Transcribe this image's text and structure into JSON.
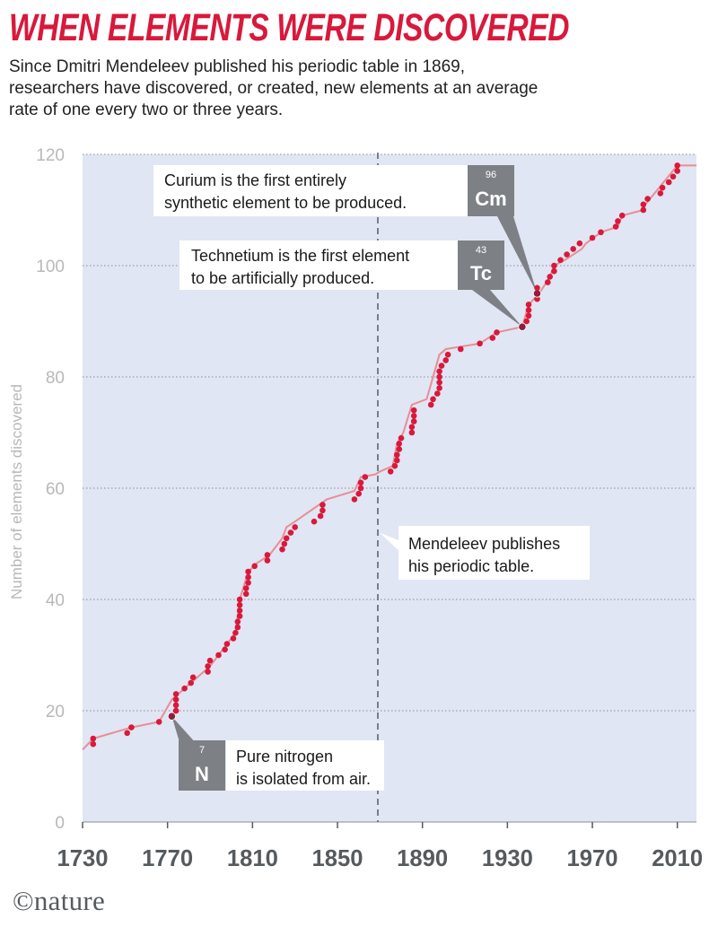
{
  "header": {
    "title": "WHEN ELEMENTS WERE DISCOVERED",
    "subtitle": "Since Dmitri Mendeleev published his periodic table in 1869, researchers have discovered, or created, new elements at an average rate of one every two or three years."
  },
  "brand": {
    "label": "©nature"
  },
  "colors": {
    "background_panel": "#e0e6f3",
    "line": "#e98d94",
    "point": "#d8193c",
    "highlight_point": "#8b1f3c",
    "badge": "#7d8185",
    "title": "#d8193c"
  },
  "chart_data": {
    "type": "line",
    "title": "WHEN ELEMENTS WERE DISCOVERED",
    "xlabel": "",
    "ylabel": "Number of elements discovered",
    "xlim": [
      1730,
      2019
    ],
    "ylim": [
      0,
      120
    ],
    "grid": true,
    "x_tick_labels": [
      "1730",
      "1770",
      "1810",
      "1850",
      "1890",
      "1930",
      "1970",
      "2010"
    ],
    "y_tick_labels": [
      "0",
      "20",
      "40",
      "60",
      "80",
      "100",
      "120"
    ],
    "step_line": [
      [
        1725,
        13
      ],
      [
        1735,
        15
      ],
      [
        1753,
        17
      ],
      [
        1766,
        18
      ],
      [
        1772,
        22
      ],
      [
        1790,
        28
      ],
      [
        1802,
        34
      ],
      [
        1804,
        40
      ],
      [
        1808,
        45
      ],
      [
        1812,
        46.5
      ],
      [
        1818,
        48
      ],
      [
        1824,
        51
      ],
      [
        1826,
        53
      ],
      [
        1830,
        54
      ],
      [
        1845,
        58
      ],
      [
        1858,
        59.5
      ],
      [
        1861,
        62
      ],
      [
        1868,
        62.5
      ],
      [
        1870,
        63
      ],
      [
        1876,
        64
      ],
      [
        1878,
        68
      ],
      [
        1881,
        70
      ],
      [
        1885,
        75
      ],
      [
        1892,
        76
      ],
      [
        1895,
        80
      ],
      [
        1898,
        84
      ],
      [
        1901,
        85
      ],
      [
        1917,
        86
      ],
      [
        1925,
        88
      ],
      [
        1937,
        89
      ],
      [
        1940,
        93
      ],
      [
        1945,
        95
      ],
      [
        1950,
        98
      ],
      [
        1952,
        100
      ],
      [
        1957,
        101
      ],
      [
        1965,
        103
      ],
      [
        1967,
        104
      ],
      [
        1974,
        106
      ],
      [
        1982,
        107
      ],
      [
        1984,
        109
      ],
      [
        1994,
        110
      ],
      [
        1995,
        111
      ],
      [
        2010,
        118
      ],
      [
        2019,
        118
      ]
    ],
    "series": [
      {
        "values": [
          [
            1735,
            14
          ],
          [
            1735,
            15
          ],
          [
            1751,
            16
          ],
          [
            1753,
            17
          ],
          [
            1766,
            18
          ],
          [
            1772,
            19
          ],
          [
            1774,
            20
          ],
          [
            1774,
            21
          ],
          [
            1774,
            22
          ],
          [
            1774,
            23
          ],
          [
            1778,
            24
          ],
          [
            1781,
            25
          ],
          [
            1782,
            26
          ],
          [
            1789,
            27
          ],
          [
            1789,
            28
          ],
          [
            1790,
            29
          ],
          [
            1794,
            30
          ],
          [
            1797,
            31
          ],
          [
            1798,
            32
          ],
          [
            1801,
            33
          ],
          [
            1802,
            34
          ],
          [
            1803,
            35
          ],
          [
            1803,
            36
          ],
          [
            1804,
            37
          ],
          [
            1804,
            38
          ],
          [
            1804,
            39
          ],
          [
            1804,
            40
          ],
          [
            1807,
            41
          ],
          [
            1807,
            42
          ],
          [
            1808,
            43
          ],
          [
            1808,
            44
          ],
          [
            1808,
            45
          ],
          [
            1811,
            46
          ],
          [
            1817,
            47
          ],
          [
            1817,
            48
          ],
          [
            1824,
            49
          ],
          [
            1825,
            50
          ],
          [
            1826,
            51
          ],
          [
            1828,
            52
          ],
          [
            1830,
            53
          ],
          [
            1839,
            54
          ],
          [
            1842,
            55
          ],
          [
            1843,
            56
          ],
          [
            1843,
            57
          ],
          [
            1858,
            58
          ],
          [
            1860,
            59
          ],
          [
            1861,
            60
          ],
          [
            1861,
            61
          ],
          [
            1863,
            62
          ],
          [
            1875,
            63
          ],
          [
            1877,
            64
          ],
          [
            1878,
            65
          ],
          [
            1878,
            66
          ],
          [
            1879,
            67
          ],
          [
            1879,
            68
          ],
          [
            1880,
            69
          ],
          [
            1885,
            70
          ],
          [
            1885,
            71
          ],
          [
            1886,
            72
          ],
          [
            1886,
            73
          ],
          [
            1886,
            74
          ],
          [
            1894,
            75
          ],
          [
            1895,
            76
          ],
          [
            1897,
            77
          ],
          [
            1898,
            78
          ],
          [
            1898,
            79
          ],
          [
            1898,
            80
          ],
          [
            1898,
            81
          ],
          [
            1899,
            82
          ],
          [
            1901,
            83
          ],
          [
            1902,
            84
          ],
          [
            1908,
            85
          ],
          [
            1917,
            86
          ],
          [
            1923,
            87
          ],
          [
            1925,
            88
          ],
          [
            1937,
            89
          ],
          [
            1939,
            90
          ],
          [
            1940,
            91
          ],
          [
            1940,
            92
          ],
          [
            1940,
            93
          ],
          [
            1944,
            94
          ],
          [
            1944,
            95
          ],
          [
            1944,
            96
          ],
          [
            1949,
            97
          ],
          [
            1950,
            98
          ],
          [
            1952,
            99
          ],
          [
            1952,
            100
          ],
          [
            1955,
            101
          ],
          [
            1958,
            102
          ],
          [
            1961,
            103
          ],
          [
            1964,
            104
          ],
          [
            1970,
            105
          ],
          [
            1974,
            106
          ],
          [
            1981,
            107
          ],
          [
            1982,
            108
          ],
          [
            1984,
            109
          ],
          [
            1994,
            110
          ],
          [
            1994,
            111
          ],
          [
            1996,
            112
          ],
          [
            2002,
            113
          ],
          [
            2003,
            114
          ],
          [
            2006,
            115
          ],
          [
            2008,
            116
          ],
          [
            2010,
            117
          ],
          [
            2010,
            118
          ]
        ]
      }
    ],
    "reference_line": {
      "x": 1869,
      "label": "Mendeleev publishes his periodic table."
    },
    "annotations": [
      {
        "x": 1772,
        "y": 19,
        "number": "7",
        "symbol": "N",
        "text": "Pure nitrogen is isolated from air."
      },
      {
        "x": 1937,
        "y": 89,
        "number": "43",
        "symbol": "Tc",
        "text": "Technetium is the first element to be artificially produced."
      },
      {
        "x": 1944,
        "y": 95,
        "number": "96",
        "symbol": "Cm",
        "text": "Curium is the first entirely synthetic element to be produced."
      }
    ]
  }
}
